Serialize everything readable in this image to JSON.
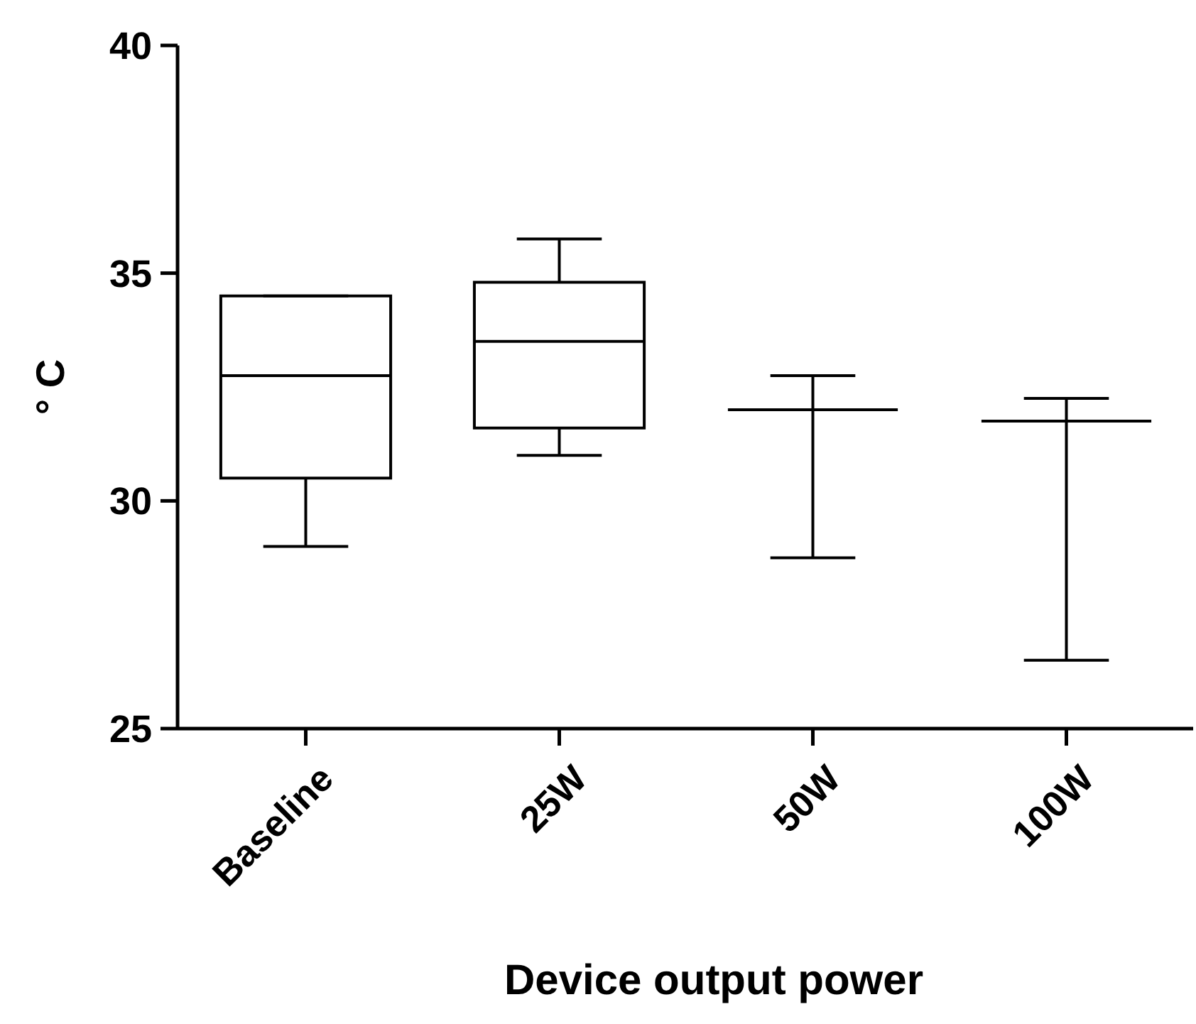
{
  "chart_data": {
    "type": "box",
    "xlabel": "Device output power",
    "ylabel": "° C",
    "categories": [
      "Baseline",
      "25W",
      "50W",
      "100W"
    ],
    "boxes": [
      {
        "low": 29.0,
        "q1": 30.5,
        "median": 32.75,
        "q3": 34.5,
        "high": 34.5
      },
      {
        "low": 31.0,
        "q1": 31.6,
        "median": 33.5,
        "q3": 34.8,
        "high": 35.75
      },
      {
        "low": 28.75,
        "q1": 32.0,
        "median": 32.0,
        "q3": 32.0,
        "high": 32.75
      },
      {
        "low": 26.5,
        "q1": 31.75,
        "median": 31.75,
        "q3": 31.75,
        "high": 32.25
      }
    ],
    "color": "#000000",
    "ylim": [
      25,
      40
    ],
    "yticks": [
      25,
      30,
      35,
      40
    ],
    "grid": false
  }
}
